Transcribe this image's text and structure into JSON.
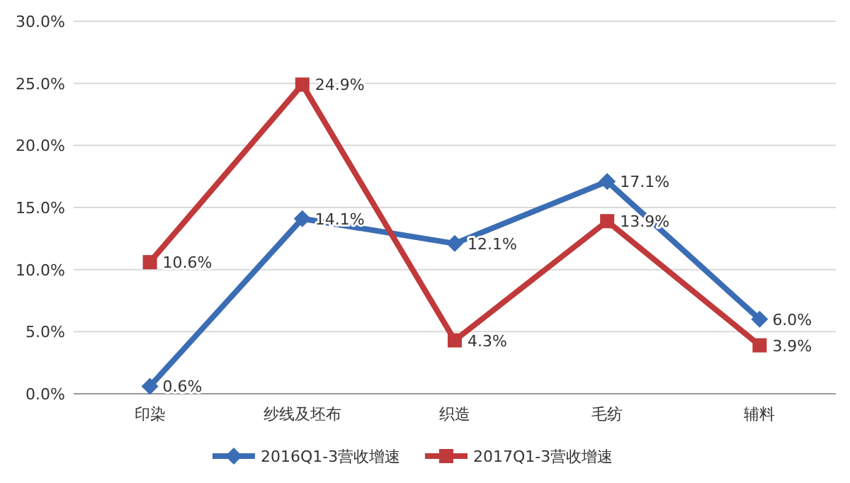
{
  "chart_data": {
    "type": "line",
    "categories": [
      "印染",
      "纱线及坯布",
      "织造",
      "毛纺",
      "辅料"
    ],
    "series": [
      {
        "name": "2016Q1-3营收增速",
        "color": "#3b6db4",
        "marker": "diamond",
        "values": [
          0.6,
          14.1,
          12.1,
          17.1,
          6.0
        ],
        "value_labels": [
          "0.6%",
          "14.1%",
          "12.1%",
          "17.1%",
          "6.0%"
        ]
      },
      {
        "name": "2017Q1-3营收增速",
        "color": "#c0393b",
        "marker": "square",
        "values": [
          10.6,
          24.9,
          4.3,
          13.9,
          3.9
        ],
        "value_labels": [
          "10.6%",
          "24.9%",
          "4.3%",
          "13.9%",
          "3.9%"
        ]
      }
    ],
    "ylim": [
      0,
      30
    ],
    "yticks": [
      {
        "value": 0,
        "label": "0.0%"
      },
      {
        "value": 5,
        "label": "5.0%"
      },
      {
        "value": 10,
        "label": "10.0%"
      },
      {
        "value": 15,
        "label": "15.0%"
      },
      {
        "value": 20,
        "label": "20.0%"
      },
      {
        "value": 25,
        "label": "25.0%"
      },
      {
        "value": 30,
        "label": "30.0%"
      }
    ],
    "grid": "y",
    "legend": "bottom",
    "line_style": "solid"
  }
}
